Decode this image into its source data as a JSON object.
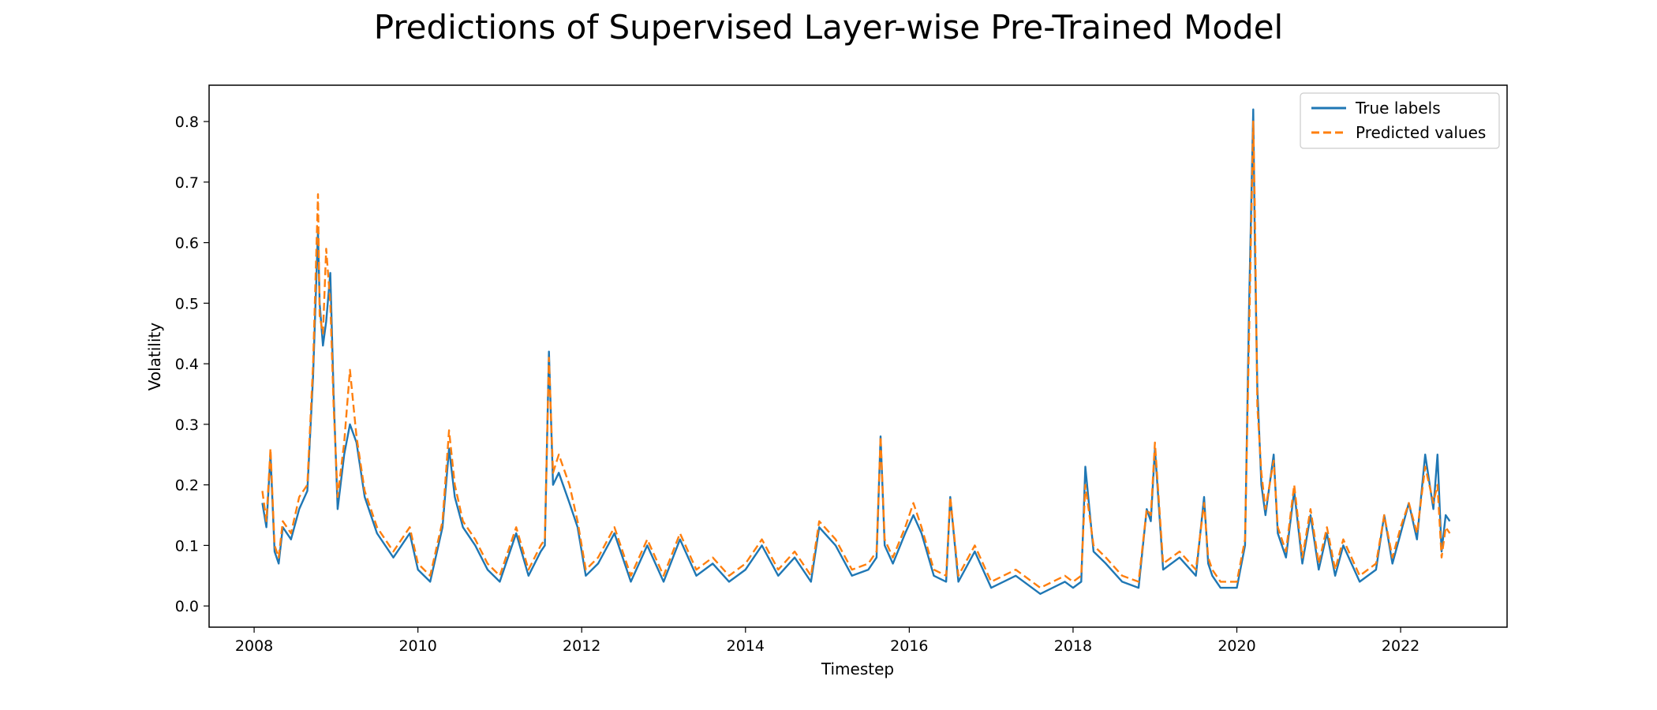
{
  "chart_data": {
    "type": "line",
    "title": "Predictions of Supervised Layer-wise Pre-Trained Model",
    "xlabel": "Timestep",
    "ylabel": "Volatility",
    "xlim": [
      2007.45,
      2023.3
    ],
    "ylim": [
      -0.035,
      0.86
    ],
    "x_ticks": [
      2008,
      2010,
      2012,
      2014,
      2016,
      2018,
      2020,
      2022
    ],
    "x_tick_labels": [
      "2008",
      "2010",
      "2012",
      "2014",
      "2016",
      "2018",
      "2020",
      "2022"
    ],
    "y_ticks": [
      0.0,
      0.1,
      0.2,
      0.3,
      0.4,
      0.5,
      0.6,
      0.7,
      0.8
    ],
    "y_tick_labels": [
      "0.0",
      "0.1",
      "0.2",
      "0.3",
      "0.4",
      "0.5",
      "0.6",
      "0.7",
      "0.8"
    ],
    "grid": false,
    "legend": {
      "placement": "top-right",
      "entries": [
        "True labels",
        "Predicted values"
      ]
    },
    "series": [
      {
        "name": "True labels",
        "color": "#1f77b4",
        "style": "solid",
        "x": [
          2008.1,
          2008.15,
          2008.2,
          2008.25,
          2008.3,
          2008.35,
          2008.45,
          2008.55,
          2008.65,
          2008.72,
          2008.78,
          2008.8,
          2008.84,
          2008.88,
          2008.93,
          2008.97,
          2009.02,
          2009.1,
          2009.17,
          2009.25,
          2009.35,
          2009.5,
          2009.7,
          2009.9,
          2010.0,
          2010.15,
          2010.3,
          2010.38,
          2010.45,
          2010.55,
          2010.7,
          2010.85,
          2011.0,
          2011.2,
          2011.35,
          2011.5,
          2011.55,
          2011.6,
          2011.65,
          2011.72,
          2011.85,
          2011.95,
          2012.05,
          2012.2,
          2012.4,
          2012.6,
          2012.8,
          2013.0,
          2013.2,
          2013.4,
          2013.6,
          2013.8,
          2014.0,
          2014.2,
          2014.4,
          2014.6,
          2014.8,
          2014.9,
          2015.1,
          2015.3,
          2015.5,
          2015.6,
          2015.65,
          2015.7,
          2015.8,
          2015.95,
          2016.05,
          2016.15,
          2016.3,
          2016.45,
          2016.5,
          2016.6,
          2016.8,
          2017.0,
          2017.3,
          2017.6,
          2017.9,
          2018.0,
          2018.1,
          2018.15,
          2018.25,
          2018.4,
          2018.6,
          2018.8,
          2018.9,
          2018.95,
          2019.0,
          2019.1,
          2019.3,
          2019.5,
          2019.6,
          2019.65,
          2019.7,
          2019.8,
          2020.0,
          2020.1,
          2020.15,
          2020.2,
          2020.22,
          2020.25,
          2020.3,
          2020.35,
          2020.45,
          2020.5,
          2020.6,
          2020.7,
          2020.8,
          2020.9,
          2021.0,
          2021.1,
          2021.2,
          2021.3,
          2021.5,
          2021.7,
          2021.8,
          2021.9,
          2022.0,
          2022.1,
          2022.2,
          2022.3,
          2022.4,
          2022.45,
          2022.5,
          2022.55,
          2022.6
        ],
        "y": [
          0.17,
          0.13,
          0.25,
          0.09,
          0.07,
          0.13,
          0.11,
          0.16,
          0.19,
          0.38,
          0.62,
          0.5,
          0.43,
          0.47,
          0.55,
          0.35,
          0.16,
          0.25,
          0.3,
          0.27,
          0.18,
          0.12,
          0.08,
          0.12,
          0.06,
          0.04,
          0.13,
          0.26,
          0.18,
          0.13,
          0.1,
          0.06,
          0.04,
          0.12,
          0.05,
          0.09,
          0.1,
          0.42,
          0.2,
          0.22,
          0.17,
          0.13,
          0.05,
          0.07,
          0.12,
          0.04,
          0.1,
          0.04,
          0.11,
          0.05,
          0.07,
          0.04,
          0.06,
          0.1,
          0.05,
          0.08,
          0.04,
          0.13,
          0.1,
          0.05,
          0.06,
          0.08,
          0.28,
          0.1,
          0.07,
          0.12,
          0.15,
          0.12,
          0.05,
          0.04,
          0.18,
          0.04,
          0.09,
          0.03,
          0.05,
          0.02,
          0.04,
          0.03,
          0.04,
          0.23,
          0.09,
          0.07,
          0.04,
          0.03,
          0.16,
          0.14,
          0.26,
          0.06,
          0.08,
          0.05,
          0.18,
          0.07,
          0.05,
          0.03,
          0.03,
          0.1,
          0.5,
          0.82,
          0.6,
          0.36,
          0.2,
          0.15,
          0.25,
          0.12,
          0.08,
          0.19,
          0.07,
          0.15,
          0.06,
          0.12,
          0.05,
          0.1,
          0.04,
          0.06,
          0.15,
          0.07,
          0.12,
          0.17,
          0.11,
          0.25,
          0.16,
          0.25,
          0.09,
          0.15,
          0.14
        ]
      },
      {
        "name": "Predicted values",
        "color": "#ff7f0e",
        "style": "dashed",
        "x": [
          2008.1,
          2008.15,
          2008.2,
          2008.25,
          2008.3,
          2008.35,
          2008.45,
          2008.55,
          2008.65,
          2008.72,
          2008.78,
          2008.8,
          2008.84,
          2008.88,
          2008.93,
          2008.97,
          2009.02,
          2009.1,
          2009.17,
          2009.25,
          2009.35,
          2009.5,
          2009.7,
          2009.9,
          2010.0,
          2010.15,
          2010.3,
          2010.38,
          2010.45,
          2010.55,
          2010.7,
          2010.85,
          2011.0,
          2011.2,
          2011.35,
          2011.5,
          2011.55,
          2011.6,
          2011.65,
          2011.72,
          2011.85,
          2011.95,
          2012.05,
          2012.2,
          2012.4,
          2012.6,
          2012.8,
          2013.0,
          2013.2,
          2013.4,
          2013.6,
          2013.8,
          2014.0,
          2014.2,
          2014.4,
          2014.6,
          2014.8,
          2014.9,
          2015.1,
          2015.3,
          2015.5,
          2015.6,
          2015.65,
          2015.7,
          2015.8,
          2015.95,
          2016.05,
          2016.15,
          2016.3,
          2016.45,
          2016.5,
          2016.6,
          2016.8,
          2017.0,
          2017.3,
          2017.6,
          2017.9,
          2018.0,
          2018.1,
          2018.15,
          2018.25,
          2018.4,
          2018.6,
          2018.8,
          2018.9,
          2018.95,
          2019.0,
          2019.1,
          2019.3,
          2019.5,
          2019.6,
          2019.65,
          2019.7,
          2019.8,
          2020.0,
          2020.1,
          2020.15,
          2020.2,
          2020.22,
          2020.25,
          2020.3,
          2020.35,
          2020.45,
          2020.5,
          2020.6,
          2020.7,
          2020.8,
          2020.9,
          2021.0,
          2021.1,
          2021.2,
          2021.3,
          2021.5,
          2021.7,
          2021.8,
          2021.9,
          2022.0,
          2022.1,
          2022.2,
          2022.3,
          2022.4,
          2022.45,
          2022.5,
          2022.55,
          2022.6
        ],
        "y": [
          0.19,
          0.14,
          0.26,
          0.1,
          0.08,
          0.14,
          0.12,
          0.18,
          0.2,
          0.4,
          0.68,
          0.48,
          0.45,
          0.59,
          0.5,
          0.33,
          0.18,
          0.27,
          0.39,
          0.28,
          0.19,
          0.13,
          0.09,
          0.13,
          0.07,
          0.05,
          0.14,
          0.29,
          0.2,
          0.14,
          0.11,
          0.07,
          0.05,
          0.13,
          0.06,
          0.1,
          0.11,
          0.41,
          0.22,
          0.25,
          0.2,
          0.14,
          0.06,
          0.08,
          0.13,
          0.05,
          0.11,
          0.05,
          0.12,
          0.06,
          0.08,
          0.05,
          0.07,
          0.11,
          0.06,
          0.09,
          0.05,
          0.14,
          0.11,
          0.06,
          0.07,
          0.09,
          0.28,
          0.11,
          0.08,
          0.13,
          0.17,
          0.13,
          0.06,
          0.05,
          0.18,
          0.05,
          0.1,
          0.04,
          0.06,
          0.03,
          0.05,
          0.04,
          0.05,
          0.2,
          0.1,
          0.08,
          0.05,
          0.04,
          0.16,
          0.15,
          0.27,
          0.07,
          0.09,
          0.06,
          0.17,
          0.08,
          0.06,
          0.04,
          0.04,
          0.11,
          0.45,
          0.8,
          0.66,
          0.33,
          0.22,
          0.16,
          0.24,
          0.13,
          0.09,
          0.2,
          0.08,
          0.16,
          0.07,
          0.13,
          0.06,
          0.11,
          0.05,
          0.07,
          0.15,
          0.08,
          0.13,
          0.17,
          0.12,
          0.23,
          0.17,
          0.2,
          0.08,
          0.13,
          0.12
        ]
      }
    ]
  }
}
